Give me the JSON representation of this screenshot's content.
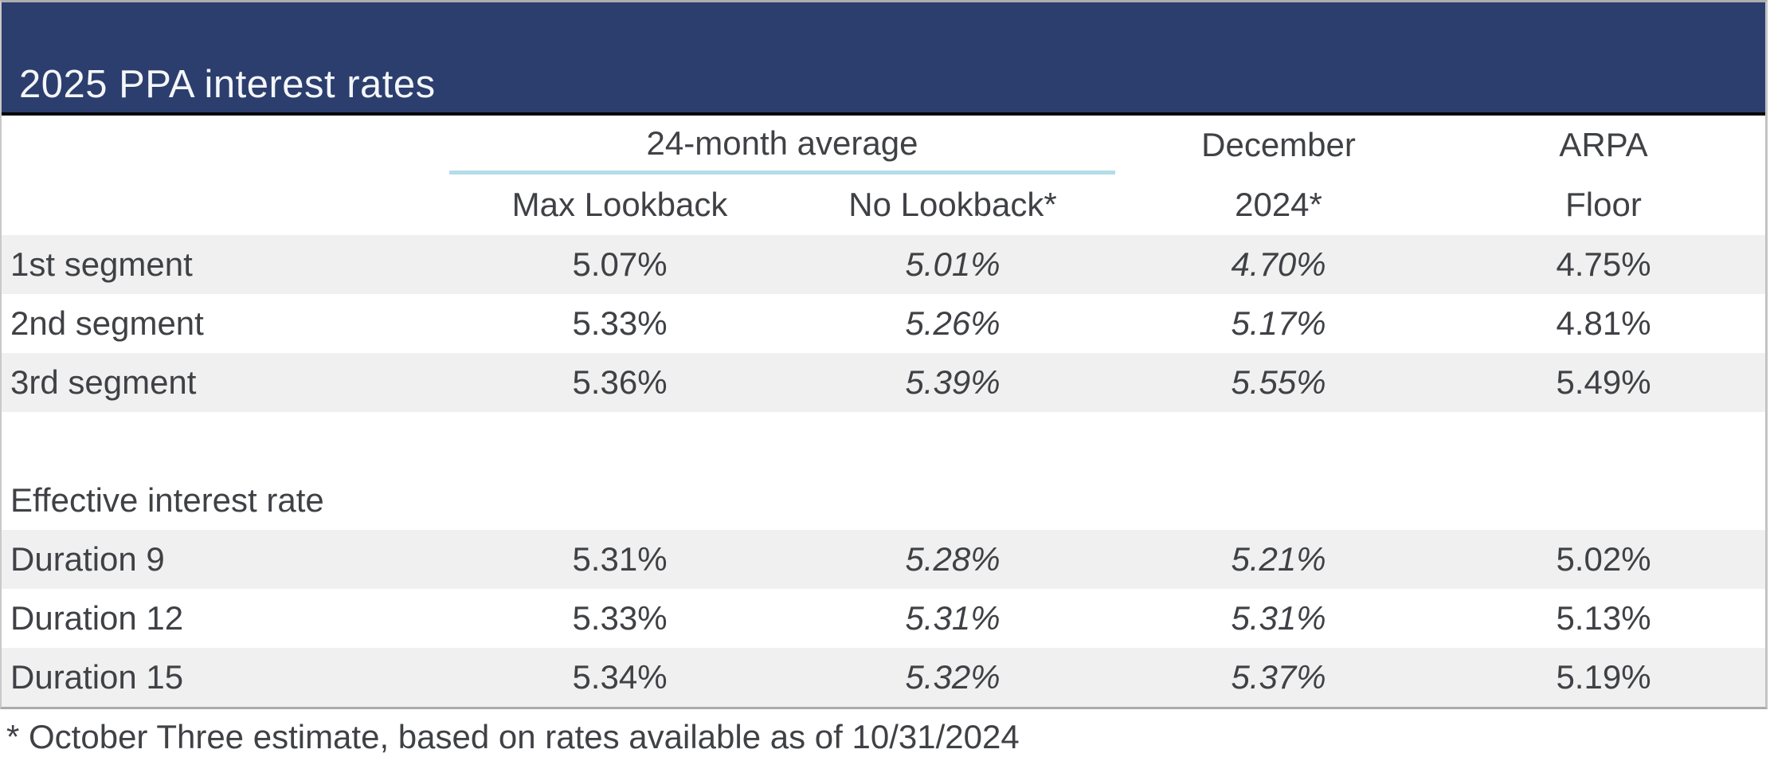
{
  "title": "2025 PPA interest rates",
  "header": {
    "group_24_month": "24-month average",
    "max_lookback": "Max Lookback",
    "no_lookback": "No Lookback*",
    "december_line1": "December",
    "december_line2": "2024*",
    "arpa_line1": "ARPA",
    "arpa_line2": "Floor"
  },
  "segments": [
    {
      "label": "1st segment",
      "max_lookback": "5.07%",
      "no_lookback": "5.01%",
      "december_2024": "4.70%",
      "arpa_floor": "4.75%"
    },
    {
      "label": "2nd segment",
      "max_lookback": "5.33%",
      "no_lookback": "5.26%",
      "december_2024": "5.17%",
      "arpa_floor": "4.81%"
    },
    {
      "label": "3rd segment",
      "max_lookback": "5.36%",
      "no_lookback": "5.39%",
      "december_2024": "5.55%",
      "arpa_floor": "5.49%"
    }
  ],
  "section_label": "Effective interest rate",
  "durations": [
    {
      "label": "Duration 9",
      "max_lookback": "5.31%",
      "no_lookback": "5.28%",
      "december_2024": "5.21%",
      "arpa_floor": "5.02%"
    },
    {
      "label": "Duration 12",
      "max_lookback": "5.33%",
      "no_lookback": "5.31%",
      "december_2024": "5.31%",
      "arpa_floor": "5.13%"
    },
    {
      "label": "Duration 15",
      "max_lookback": "5.34%",
      "no_lookback": "5.32%",
      "december_2024": "5.37%",
      "arpa_floor": "5.19%"
    }
  ],
  "footnote": "* October Three estimate, based on rates available as of 10/31/2024",
  "colors": {
    "title_bar_navy": "#2B3E6E",
    "title_text": "#FFFFFF",
    "title_rule_black": "#06060A",
    "group_underline_cyan": "#B3DDE9",
    "row_shade_gray": "#F0F0F0",
    "body_text_gray": "#3F4145",
    "frame_gray": "#ABABAB"
  }
}
